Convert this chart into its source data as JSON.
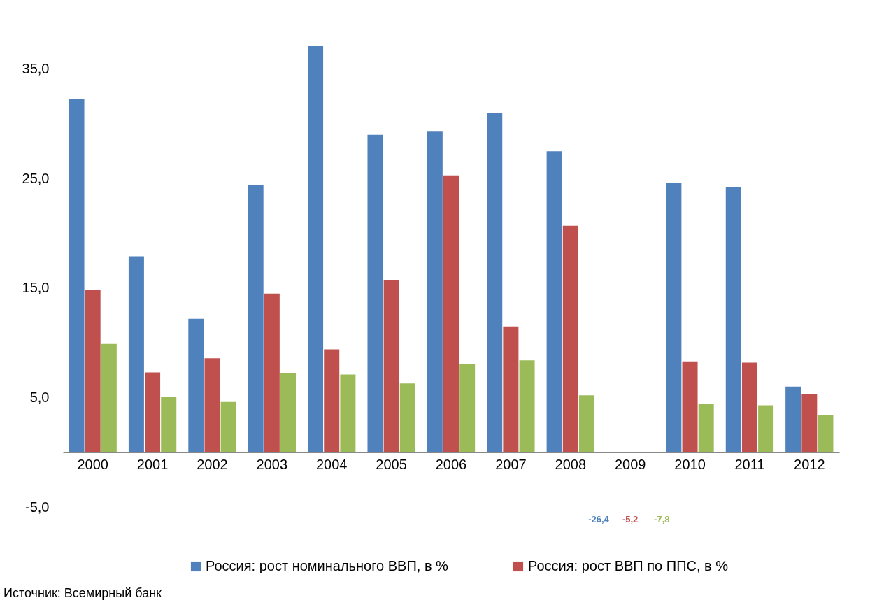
{
  "chart_data": {
    "type": "bar",
    "categories": [
      "2000",
      "2001",
      "2002",
      "2003",
      "2004",
      "2005",
      "2006",
      "2007",
      "2008",
      "2009",
      "2010",
      "2011",
      "2012"
    ],
    "series": [
      {
        "name": "Россия: рост номинального ВВП, в %",
        "color": "#4f81bd",
        "values": [
          32.3,
          17.9,
          12.2,
          24.4,
          37.1,
          29.0,
          29.3,
          31.0,
          27.5,
          null,
          24.6,
          24.2,
          6.0
        ],
        "value_labels": [
          null,
          null,
          null,
          null,
          null,
          null,
          null,
          null,
          null,
          "-26,4",
          null,
          null,
          null
        ]
      },
      {
        "name": "Россия: рост ВВП по ППС, в %",
        "color": "#c0504d",
        "values": [
          14.8,
          7.3,
          8.6,
          14.5,
          9.4,
          15.7,
          25.3,
          11.5,
          20.7,
          null,
          8.3,
          8.2,
          5.3
        ],
        "value_labels": [
          null,
          null,
          null,
          null,
          null,
          null,
          null,
          null,
          null,
          "-5,2",
          null,
          null,
          null
        ]
      },
      {
        "color": "#9bbb59",
        "values": [
          9.9,
          5.1,
          4.6,
          7.2,
          7.1,
          6.3,
          8.1,
          8.4,
          5.2,
          null,
          4.4,
          4.3,
          3.4
        ],
        "value_labels": [
          null,
          null,
          null,
          null,
          null,
          null,
          null,
          null,
          null,
          "-7,8",
          null,
          null,
          null
        ]
      }
    ],
    "ylim": [
      -5,
      41
    ],
    "yticks": [
      {
        "value": -5,
        "label": "-5,0"
      },
      {
        "value": 5,
        "label": "5,0"
      },
      {
        "value": 15,
        "label": "15,0"
      },
      {
        "value": 25,
        "label": "25,0"
      },
      {
        "value": 35,
        "label": "35,0"
      }
    ],
    "legend": "bottom",
    "annotations": [
      "Источник: Всемирный банк"
    ]
  }
}
